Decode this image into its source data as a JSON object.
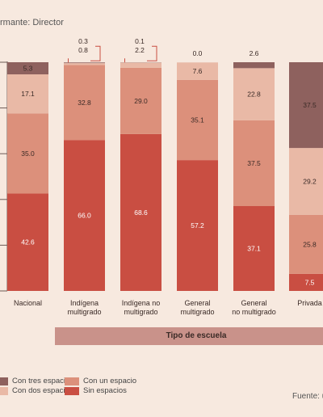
{
  "header": {
    "subtitle": "rmante: Director"
  },
  "footer": {
    "source": "Fuente: u"
  },
  "axis_band": {
    "label": "Tipo de escuela"
  },
  "legend": [
    {
      "label": "Con tres espacios",
      "color": "#8e615e"
    },
    {
      "label": "Con dos espacios",
      "color": "#e9b9a6"
    },
    {
      "label": "Con un espacio",
      "color": "#dc907b"
    },
    {
      "label": "Sin espacios",
      "color": "#c94e42"
    }
  ],
  "chart_data": {
    "type": "bar",
    "stacked": true,
    "ylim": [
      0,
      100
    ],
    "grid": false,
    "categories": [
      "Nacional",
      "Indígena multigrado",
      "Indígena no multigrado",
      "General multigrado",
      "General no multigrado",
      "Privada"
    ],
    "category_lines": [
      [
        "Nacional"
      ],
      [
        "Indígena",
        "multigrado"
      ],
      [
        "Indígena no",
        "multigrado"
      ],
      [
        "General",
        "multigrado"
      ],
      [
        "General",
        "no multigrado"
      ],
      [
        "Privada"
      ]
    ],
    "series": [
      {
        "name": "Sin espacios",
        "color": "#c94e42",
        "values": [
          42.6,
          66.0,
          68.6,
          57.2,
          37.1,
          7.5
        ]
      },
      {
        "name": "Con un espacio",
        "color": "#dc907b",
        "values": [
          35.0,
          32.8,
          29.0,
          35.1,
          37.5,
          25.8
        ]
      },
      {
        "name": "Con dos espacios",
        "color": "#e9b9a6",
        "values": [
          17.1,
          0.8,
          2.2,
          7.6,
          22.8,
          29.2
        ]
      },
      {
        "name": "Con tres espacios",
        "color": "#8e615e",
        "values": [
          5.3,
          0.3,
          0.1,
          0.0,
          2.6,
          37.5
        ]
      }
    ]
  }
}
